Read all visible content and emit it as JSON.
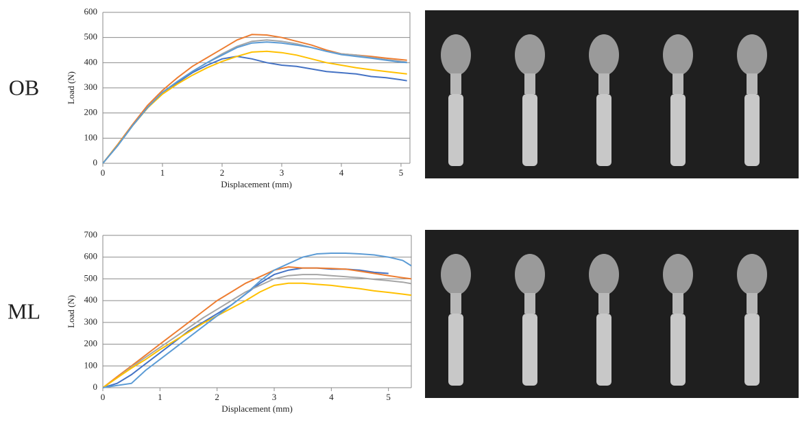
{
  "chart_data": [
    {
      "type": "line",
      "title": "OB",
      "x_label": "Displacement (mm)",
      "y_label": "Load (N)",
      "xlim": [
        0,
        5.15
      ],
      "xticks": [
        0,
        1,
        2,
        3,
        4,
        5
      ],
      "ylim": [
        0,
        600
      ],
      "yticks": [
        0,
        100,
        200,
        300,
        400,
        500,
        600
      ],
      "grid": true,
      "x": [
        0,
        0.25,
        0.5,
        0.75,
        1,
        1.25,
        1.5,
        1.75,
        2,
        2.25,
        2.5,
        2.75,
        3,
        3.25,
        3.5,
        3.75,
        4,
        4.25,
        4.5,
        4.75,
        5,
        5.1
      ],
      "series": [
        {
          "color": "#4472c4",
          "values": [
            0,
            70,
            150,
            220,
            280,
            320,
            360,
            390,
            415,
            425,
            415,
            400,
            390,
            385,
            375,
            365,
            360,
            355,
            345,
            340,
            332,
            328
          ]
        },
        {
          "color": "#ed7d31",
          "values": [
            0,
            75,
            155,
            230,
            290,
            340,
            385,
            420,
            455,
            490,
            512,
            510,
            500,
            485,
            470,
            450,
            435,
            430,
            425,
            418,
            412,
            410
          ]
        },
        {
          "color": "#a5a5a5",
          "values": [
            0,
            70,
            150,
            220,
            280,
            325,
            365,
            400,
            435,
            465,
            485,
            490,
            485,
            475,
            460,
            445,
            435,
            430,
            420,
            412,
            405,
            402
          ]
        },
        {
          "color": "#ffc000",
          "values": [
            0,
            72,
            150,
            220,
            275,
            315,
            350,
            380,
            405,
            425,
            442,
            445,
            440,
            430,
            415,
            400,
            390,
            380,
            372,
            365,
            358,
            355
          ]
        },
        {
          "color": "#5b9bd5",
          "values": [
            0,
            70,
            150,
            222,
            282,
            325,
            365,
            400,
            430,
            460,
            478,
            482,
            478,
            470,
            460,
            445,
            432,
            425,
            418,
            410,
            402,
            400
          ]
        }
      ]
    },
    {
      "type": "line",
      "title": "ML",
      "x_label": "Displacement (mm)",
      "y_label": "Load (N)",
      "xlim": [
        0,
        5.4
      ],
      "xticks": [
        0,
        1,
        2,
        3,
        4,
        5
      ],
      "ylim": [
        0,
        700
      ],
      "yticks": [
        0,
        100,
        200,
        300,
        400,
        500,
        600,
        700
      ],
      "grid": true,
      "x": [
        0,
        0.25,
        0.5,
        0.75,
        1,
        1.25,
        1.5,
        1.75,
        2,
        2.25,
        2.5,
        2.75,
        3,
        3.25,
        3.5,
        3.75,
        4,
        4.25,
        4.5,
        4.75,
        5,
        5.25,
        5.4
      ],
      "series": [
        {
          "color": "#4472c4",
          "values": [
            0,
            20,
            60,
            110,
            160,
            210,
            260,
            300,
            340,
            380,
            430,
            480,
            520,
            540,
            550,
            550,
            545,
            545,
            540,
            530,
            525,
            null,
            null
          ]
        },
        {
          "color": "#ed7d31",
          "values": [
            0,
            50,
            100,
            150,
            200,
            250,
            300,
            350,
            400,
            440,
            480,
            510,
            540,
            555,
            550,
            550,
            548,
            545,
            535,
            525,
            515,
            505,
            500
          ]
        },
        {
          "color": "#a5a5a5",
          "values": [
            0,
            45,
            95,
            140,
            185,
            230,
            275,
            320,
            360,
            400,
            440,
            470,
            500,
            515,
            520,
            520,
            515,
            510,
            505,
            498,
            492,
            485,
            478
          ]
        },
        {
          "color": "#ffc000",
          "values": [
            0,
            45,
            90,
            130,
            175,
            215,
            255,
            295,
            330,
            365,
            400,
            440,
            470,
            480,
            480,
            475,
            470,
            462,
            455,
            445,
            438,
            430,
            425
          ]
        },
        {
          "color": "#5b9bd5",
          "values": [
            0,
            10,
            20,
            80,
            130,
            180,
            230,
            280,
            330,
            380,
            430,
            490,
            540,
            570,
            600,
            615,
            618,
            618,
            615,
            610,
            600,
            585,
            560
          ]
        }
      ]
    }
  ]
}
